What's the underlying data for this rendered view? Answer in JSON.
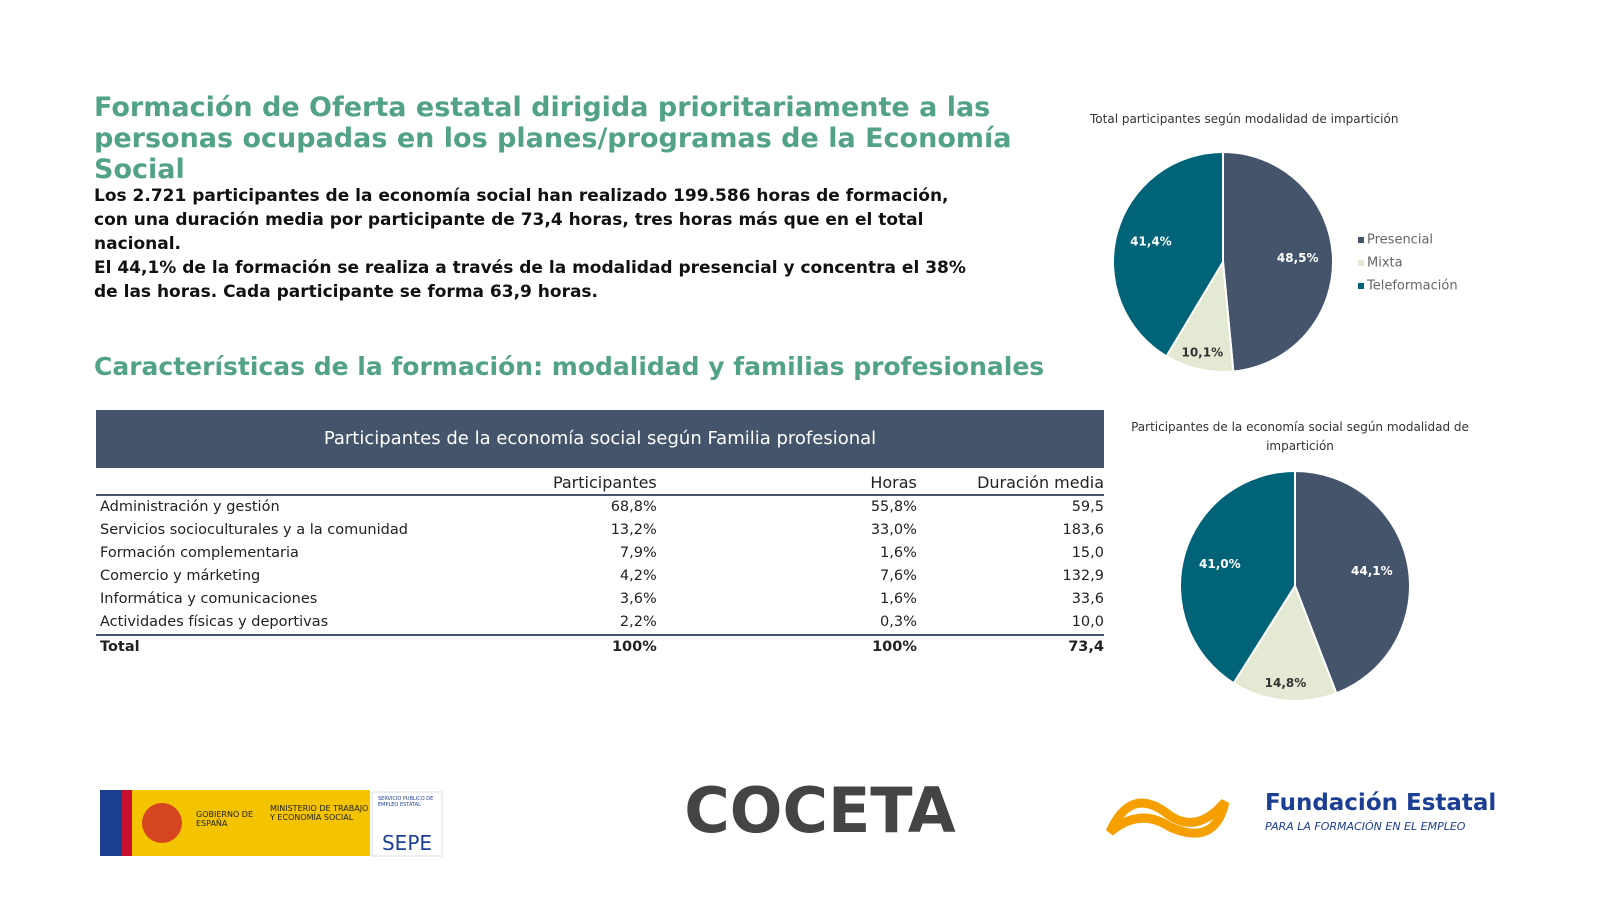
{
  "title": "Formación de Oferta estatal dirigida prioritariamente a las personas ocupadas en los planes/programas de la Economía Social",
  "paragraphs": [
    "Los 2.721 participantes de la economía social han realizado 199.586 horas de formación, con una duración media por participante de 73,4 horas, tres horas más que en el total nacional.",
    "El 44,1% de la formación se realiza a través de la modalidad presencial y concentra el 38% de las horas. Cada participante se forma 63,9 horas."
  ],
  "section_title": "Características de la formación: modalidad y familias profesionales",
  "table": {
    "title": "Participantes de la economía social según Familia profesional",
    "columns": [
      "Participantes",
      "Horas",
      "Duración media"
    ],
    "rows": [
      {
        "label": "Administración y gestión",
        "cells": [
          "68,8%",
          "55,8%",
          "59,5"
        ]
      },
      {
        "label": "Servicios socioculturales y a la comunidad",
        "cells": [
          "13,2%",
          "33,0%",
          "183,6"
        ]
      },
      {
        "label": "Formación complementaria",
        "cells": [
          "7,9%",
          "1,6%",
          "15,0"
        ]
      },
      {
        "label": "Comercio y márketing",
        "cells": [
          "4,2%",
          "7,6%",
          "132,9"
        ]
      },
      {
        "label": "Informática y comunicaciones",
        "cells": [
          "3,6%",
          "1,6%",
          "33,6"
        ]
      },
      {
        "label": "Actividades físicas y deportivas",
        "cells": [
          "2,2%",
          "0,3%",
          "10,0"
        ]
      }
    ],
    "total": {
      "label": "Total",
      "cells": [
        "100%",
        "100%",
        "73,4"
      ]
    }
  },
  "charts": [
    {
      "type": "pie",
      "title": "Total participantes según modalidad de impartición",
      "categories": [
        "Presencial",
        "Mixta",
        "Teleformación"
      ],
      "values": [
        48.5,
        10.1,
        41.4
      ],
      "value_labels": [
        "48,5%",
        "10,1%",
        "41,4%"
      ],
      "colors": [
        "#44546a",
        "#e4e9d3",
        "#006378"
      ],
      "legend": "right"
    },
    {
      "type": "pie",
      "title": "Participantes de la economía social según modalidad de impartición",
      "values": [
        44.1,
        14.8,
        41.0
      ],
      "value_labels": [
        "44,1%",
        "14,8%",
        "41,0%"
      ],
      "colors": [
        "#44546a",
        "#e4e9d3",
        "#006378"
      ]
    }
  ],
  "logos": {
    "gobierno": "GOBIERNO DE ESPAÑA",
    "ministerio": "MINISTERIO DE TRABAJO Y ECONOMÍA SOCIAL",
    "sepe_sub": "SERVICIO PÚBLICO DE EMPLEO ESTATAL",
    "sepe": "SEPE",
    "coceta": "COCETA",
    "fundae": "Fundación Estatal",
    "fundae_sub": "PARA LA FORMACIÓN EN EL EMPLEO"
  }
}
